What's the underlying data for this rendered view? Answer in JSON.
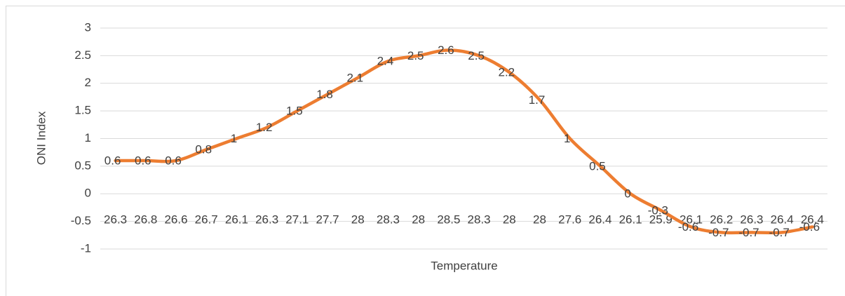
{
  "chart_data": {
    "type": "line",
    "x_label": "Temperature",
    "y_label": "ONI Index",
    "categories": [
      "26.3",
      "26.8",
      "26.6",
      "26.7",
      "26.1",
      "26.3",
      "27.1",
      "27.7",
      "28",
      "28.3",
      "28",
      "28.5",
      "28.3",
      "28",
      "28",
      "27.6",
      "26.4",
      "26.1",
      "25.9",
      "26.1",
      "26.2",
      "26.3",
      "26.4",
      "26.4"
    ],
    "series": [
      {
        "name": "ONI Index",
        "color": "#ed7d31",
        "values": [
          0.6,
          0.6,
          0.6,
          0.8,
          1,
          1.2,
          1.5,
          1.8,
          2.1,
          2.4,
          2.5,
          2.6,
          2.5,
          2.2,
          1.7,
          1,
          0.5,
          0,
          -0.3,
          -0.6,
          -0.7,
          -0.7,
          -0.7,
          -0.6
        ]
      }
    ],
    "ylim": [
      -1,
      3
    ],
    "yticks": [
      -1,
      -0.5,
      0,
      0.5,
      1,
      1.5,
      2,
      2.5,
      3
    ],
    "grid": true
  }
}
